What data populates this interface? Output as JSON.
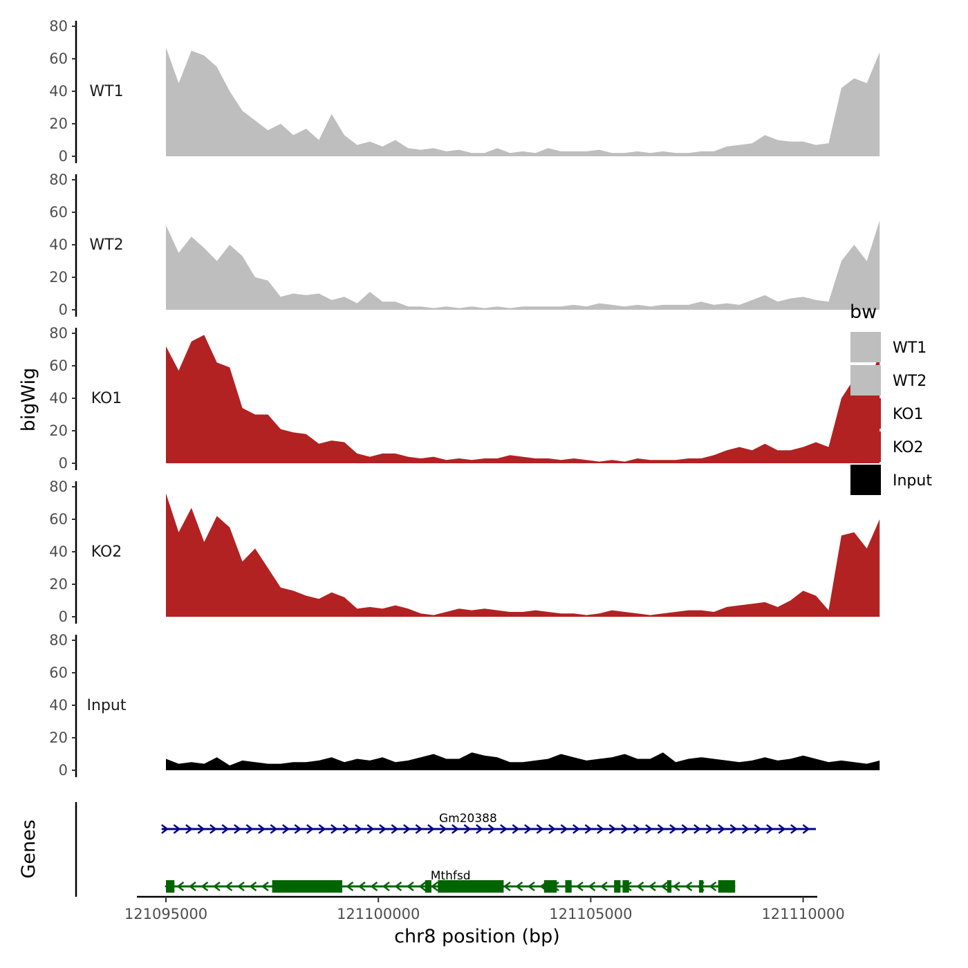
{
  "chart_data": {
    "type": "area",
    "xlabel": "chr8 position (bp)",
    "ylabel": "bigWig",
    "genes_label": "Genes",
    "xlim": [
      121095000,
      121110300
    ],
    "ylim": [
      0,
      80
    ],
    "x_ticks": [
      121095000,
      121100000,
      121105000,
      121110000
    ],
    "x_tick_labels": [
      "121095000",
      "121100000",
      "121105000",
      "121110000"
    ],
    "y_ticks": [
      0,
      20,
      40,
      60,
      80
    ],
    "y_tick_labels": [
      "0",
      "20",
      "40",
      "60",
      "80"
    ],
    "grid": false,
    "legend": {
      "title": "bw",
      "placement": "right",
      "entries": [
        {
          "label": "WT1",
          "color": "#bebebe"
        },
        {
          "label": "WT2",
          "color": "#bebebe"
        },
        {
          "label": "KO1",
          "color": "#b22222"
        },
        {
          "label": "KO2",
          "color": "#b22222"
        },
        {
          "label": "Input",
          "color": "#000000"
        }
      ]
    },
    "x_start": 121095000,
    "x_step": 300,
    "series": [
      {
        "name": "WT1",
        "color": "#bebebe",
        "values": [
          67,
          45,
          65,
          62,
          55,
          40,
          28,
          22,
          16,
          20,
          13,
          17,
          10,
          26,
          13,
          7,
          9,
          6,
          10,
          5,
          4,
          5,
          3,
          4,
          2,
          2,
          5,
          2,
          3,
          2,
          5,
          3,
          3,
          3,
          4,
          2,
          2,
          3,
          2,
          3,
          2,
          2,
          3,
          3,
          6,
          7,
          8,
          13,
          10,
          9,
          9,
          7,
          8,
          42,
          48,
          45,
          64
        ]
      },
      {
        "name": "WT2",
        "color": "#bebebe",
        "values": [
          52,
          35,
          45,
          38,
          30,
          40,
          33,
          20,
          18,
          8,
          10,
          9,
          10,
          6,
          8,
          4,
          11,
          5,
          5,
          2,
          2,
          1,
          2,
          1,
          2,
          1,
          2,
          1,
          2,
          2,
          2,
          2,
          3,
          2,
          4,
          3,
          2,
          3,
          2,
          3,
          3,
          3,
          5,
          3,
          4,
          3,
          6,
          9,
          5,
          7,
          8,
          6,
          5,
          30,
          40,
          30,
          55
        ]
      },
      {
        "name": "KO1",
        "color": "#b22222",
        "values": [
          72,
          57,
          75,
          79,
          62,
          59,
          34,
          30,
          30,
          21,
          19,
          18,
          12,
          14,
          13,
          6,
          4,
          6,
          6,
          4,
          3,
          4,
          2,
          3,
          2,
          3,
          3,
          5,
          4,
          3,
          3,
          2,
          3,
          2,
          1,
          2,
          1,
          3,
          2,
          2,
          2,
          3,
          3,
          5,
          8,
          10,
          8,
          12,
          8,
          8,
          10,
          13,
          10,
          40,
          52,
          45,
          68
        ]
      },
      {
        "name": "KO2",
        "color": "#b22222",
        "values": [
          76,
          52,
          67,
          46,
          62,
          55,
          34,
          42,
          30,
          18,
          16,
          13,
          11,
          15,
          12,
          5,
          6,
          5,
          7,
          5,
          2,
          1,
          3,
          5,
          4,
          5,
          4,
          3,
          3,
          4,
          3,
          2,
          2,
          1,
          2,
          4,
          3,
          2,
          1,
          2,
          3,
          4,
          4,
          3,
          6,
          7,
          8,
          9,
          6,
          10,
          16,
          13,
          4,
          50,
          52,
          42,
          60
        ]
      },
      {
        "name": "Input",
        "color": "#000000",
        "values": [
          7,
          4,
          5,
          4,
          8,
          3,
          6,
          5,
          4,
          4,
          5,
          5,
          6,
          8,
          5,
          7,
          6,
          8,
          5,
          6,
          8,
          10,
          7,
          7,
          11,
          9,
          8,
          5,
          5,
          6,
          7,
          10,
          8,
          6,
          7,
          8,
          10,
          7,
          7,
          11,
          5,
          7,
          8,
          7,
          6,
          5,
          6,
          8,
          6,
          7,
          9,
          7,
          5,
          6,
          5,
          4,
          6
        ]
      }
    ],
    "genes": [
      {
        "name": "Gm20388",
        "strand": "+",
        "color": "#00008b",
        "start": 121094900,
        "end": 121110300,
        "exons": []
      },
      {
        "name": "Mthfsd",
        "strand": "-",
        "color": "#006400",
        "start": 121095000,
        "end": 121108400,
        "exons": [
          [
            121095000,
            121095200
          ],
          [
            121097500,
            121099150
          ],
          [
            121101100,
            121101250
          ],
          [
            121101400,
            121102950
          ],
          [
            121103900,
            121104200
          ],
          [
            121104400,
            121104550
          ],
          [
            121105550,
            121105700
          ],
          [
            121105750,
            121105900
          ],
          [
            121106800,
            121106900
          ],
          [
            121107550,
            121107650
          ],
          [
            121108000,
            121108400
          ]
        ]
      }
    ]
  }
}
